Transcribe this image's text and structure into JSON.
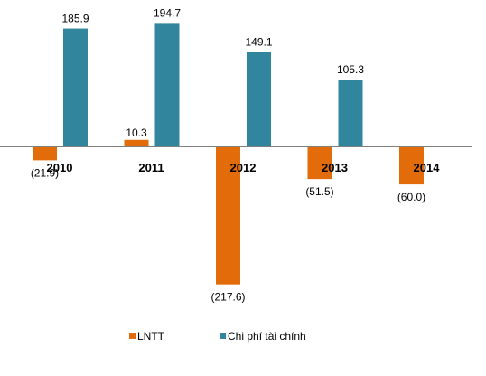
{
  "chart_data": {
    "type": "bar",
    "categories": [
      "2010",
      "2011",
      "2012",
      "2013",
      "2014"
    ],
    "series": [
      {
        "name": "LNTT",
        "values": [
          -21.9,
          10.3,
          -217.6,
          -51.5,
          -60.0
        ],
        "labels": [
          "(21.9)",
          "10.3",
          "(217.6)",
          "(51.5)",
          "(60.0)"
        ],
        "color": "#E36C0A"
      },
      {
        "name": "Chi phí tài chính",
        "values": [
          185.9,
          194.7,
          149.1,
          105.3,
          null
        ],
        "labels": [
          "185.9",
          "194.7",
          "149.1",
          "105.3",
          ""
        ],
        "color": "#31859C"
      }
    ],
    "axis_color": "#808080",
    "grid": false,
    "legend_position": "bottom"
  }
}
